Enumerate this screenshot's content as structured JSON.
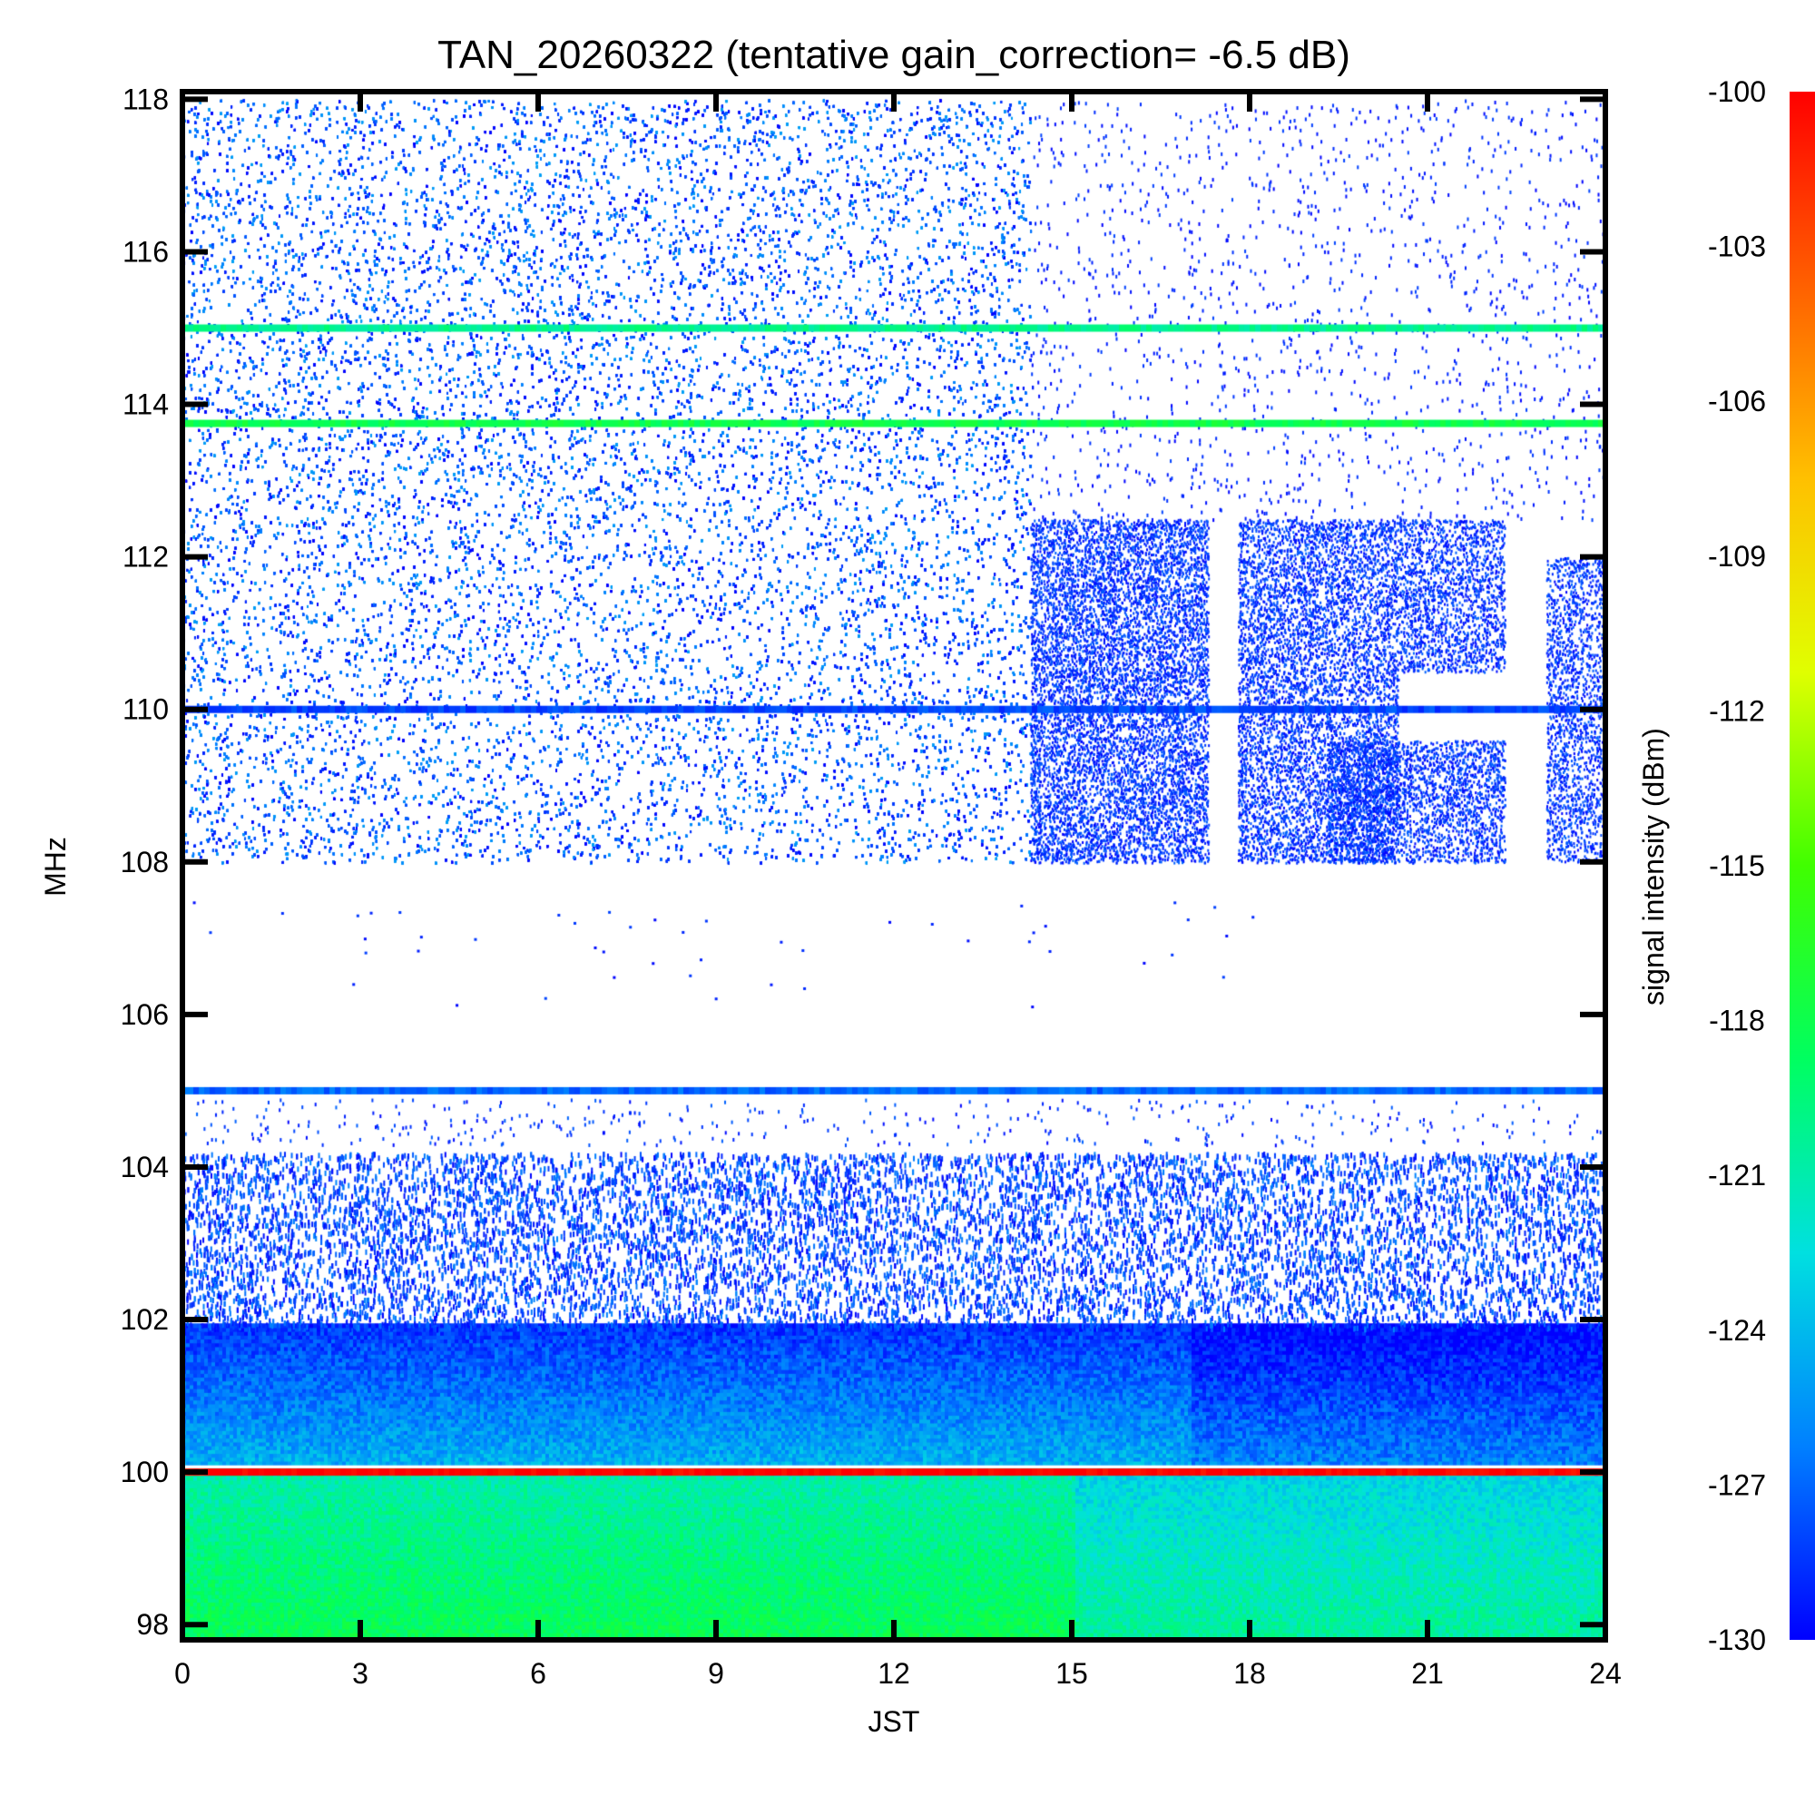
{
  "chart_data": {
    "type": "heatmap",
    "title": "TAN_20260322 (tentative gain_correction= -6.5 dB)",
    "xlabel": "JST",
    "ylabel": "MHz",
    "colorbar_label": "signal intensity (dBm)",
    "xlim": [
      0,
      24
    ],
    "ylim": [
      97.8,
      118.1
    ],
    "clim": [
      -130,
      -100
    ],
    "x_ticks": [
      0,
      3,
      6,
      9,
      12,
      15,
      18,
      21,
      24
    ],
    "x_tick_labels": [
      "0",
      "3",
      "6",
      "9",
      "12",
      "15",
      "18",
      "21",
      "24"
    ],
    "y_ticks": [
      98,
      100,
      102,
      104,
      106,
      108,
      110,
      112,
      114,
      116,
      118
    ],
    "y_tick_labels": [
      "98",
      "100",
      "102",
      "104",
      "106",
      "108",
      "110",
      "112",
      "114",
      "116",
      "118"
    ],
    "colorbar_ticks": [
      -100,
      -103,
      -106,
      -109,
      -112,
      -115,
      -118,
      -121,
      -124,
      -127,
      -130
    ],
    "colorbar_tick_labels": [
      "-100",
      "-103",
      "-106",
      "-109",
      "-112",
      "-115",
      "-118",
      "-121",
      "-124",
      "-127",
      "-130"
    ],
    "colormap": [
      "#0000ff",
      "#0080ff",
      "#00e0e0",
      "#00ff60",
      "#40ff00",
      "#e0ff00",
      "#ffc000",
      "#ff6000",
      "#ff0000"
    ],
    "grid": false,
    "strong_lines": [
      {
        "freq_mhz": 100.0,
        "dbm": -100
      },
      {
        "freq_mhz": 105.0,
        "dbm": -127
      },
      {
        "freq_mhz": 113.75,
        "dbm": -118
      },
      {
        "freq_mhz": 115.0,
        "dbm": -120
      },
      {
        "freq_mhz": 110.0,
        "dbm": -128
      }
    ]
  }
}
